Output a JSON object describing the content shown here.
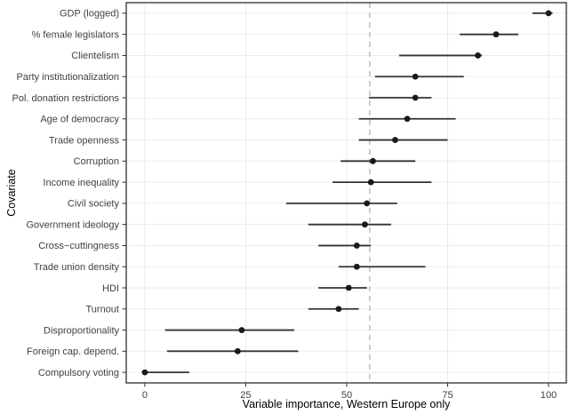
{
  "chart_data": {
    "type": "scatter",
    "subtype": "dot-plot-with-error-bars",
    "title": "",
    "xlabel": "Variable importance, Western Europe only",
    "ylabel": "Covariate",
    "xlim": [
      -4.6,
      104.4
    ],
    "x_ticks": [
      0,
      25,
      50,
      75,
      100
    ],
    "grid": "major-only",
    "legend": "none",
    "reference_line": {
      "x": 55.7,
      "style": "dashed"
    },
    "rows": [
      {
        "label": "GDP (logged)",
        "value": 100,
        "lo": 96,
        "hi": 101
      },
      {
        "label": "% female legislators",
        "value": 87,
        "lo": 78,
        "hi": 92.5
      },
      {
        "label": "Clientelism",
        "value": 82.5,
        "lo": 63,
        "hi": 83.5
      },
      {
        "label": "Party institutionalization",
        "value": 67,
        "lo": 57,
        "hi": 79
      },
      {
        "label": "Pol. donation restrictions",
        "value": 67,
        "lo": 55.5,
        "hi": 71
      },
      {
        "label": "Age of democracy",
        "value": 65,
        "lo": 53,
        "hi": 77
      },
      {
        "label": "Trade openness",
        "value": 62,
        "lo": 53,
        "hi": 75
      },
      {
        "label": "Corruption",
        "value": 56.5,
        "lo": 48.5,
        "hi": 67
      },
      {
        "label": "Income inequality",
        "value": 56,
        "lo": 46.5,
        "hi": 71
      },
      {
        "label": "Civil society",
        "value": 55,
        "lo": 35,
        "hi": 62.5
      },
      {
        "label": "Government ideology",
        "value": 54.5,
        "lo": 40.5,
        "hi": 61
      },
      {
        "label": "Cross−cuttingness",
        "value": 52.5,
        "lo": 43,
        "hi": 56
      },
      {
        "label": "Trade union density",
        "value": 52.5,
        "lo": 48,
        "hi": 69.5
      },
      {
        "label": "HDI",
        "value": 50.5,
        "lo": 43,
        "hi": 55
      },
      {
        "label": "Turnout",
        "value": 48,
        "lo": 40.5,
        "hi": 53
      },
      {
        "label": "Disproportionality",
        "value": 24,
        "lo": 5,
        "hi": 37
      },
      {
        "label": "Foreign cap. depend.",
        "value": 23,
        "lo": 5.5,
        "hi": 38
      },
      {
        "label": "Compulsory voting",
        "value": 0,
        "lo": 0,
        "hi": 11
      }
    ],
    "colors": {
      "point": "#1a1a1a",
      "segment": "#333333",
      "grid": "#ebebeb",
      "reference": "#b8b8b8",
      "border": "#2e2e2e",
      "tick_text": "#404040",
      "title_text": "#000000",
      "background": "#ffffff"
    }
  }
}
